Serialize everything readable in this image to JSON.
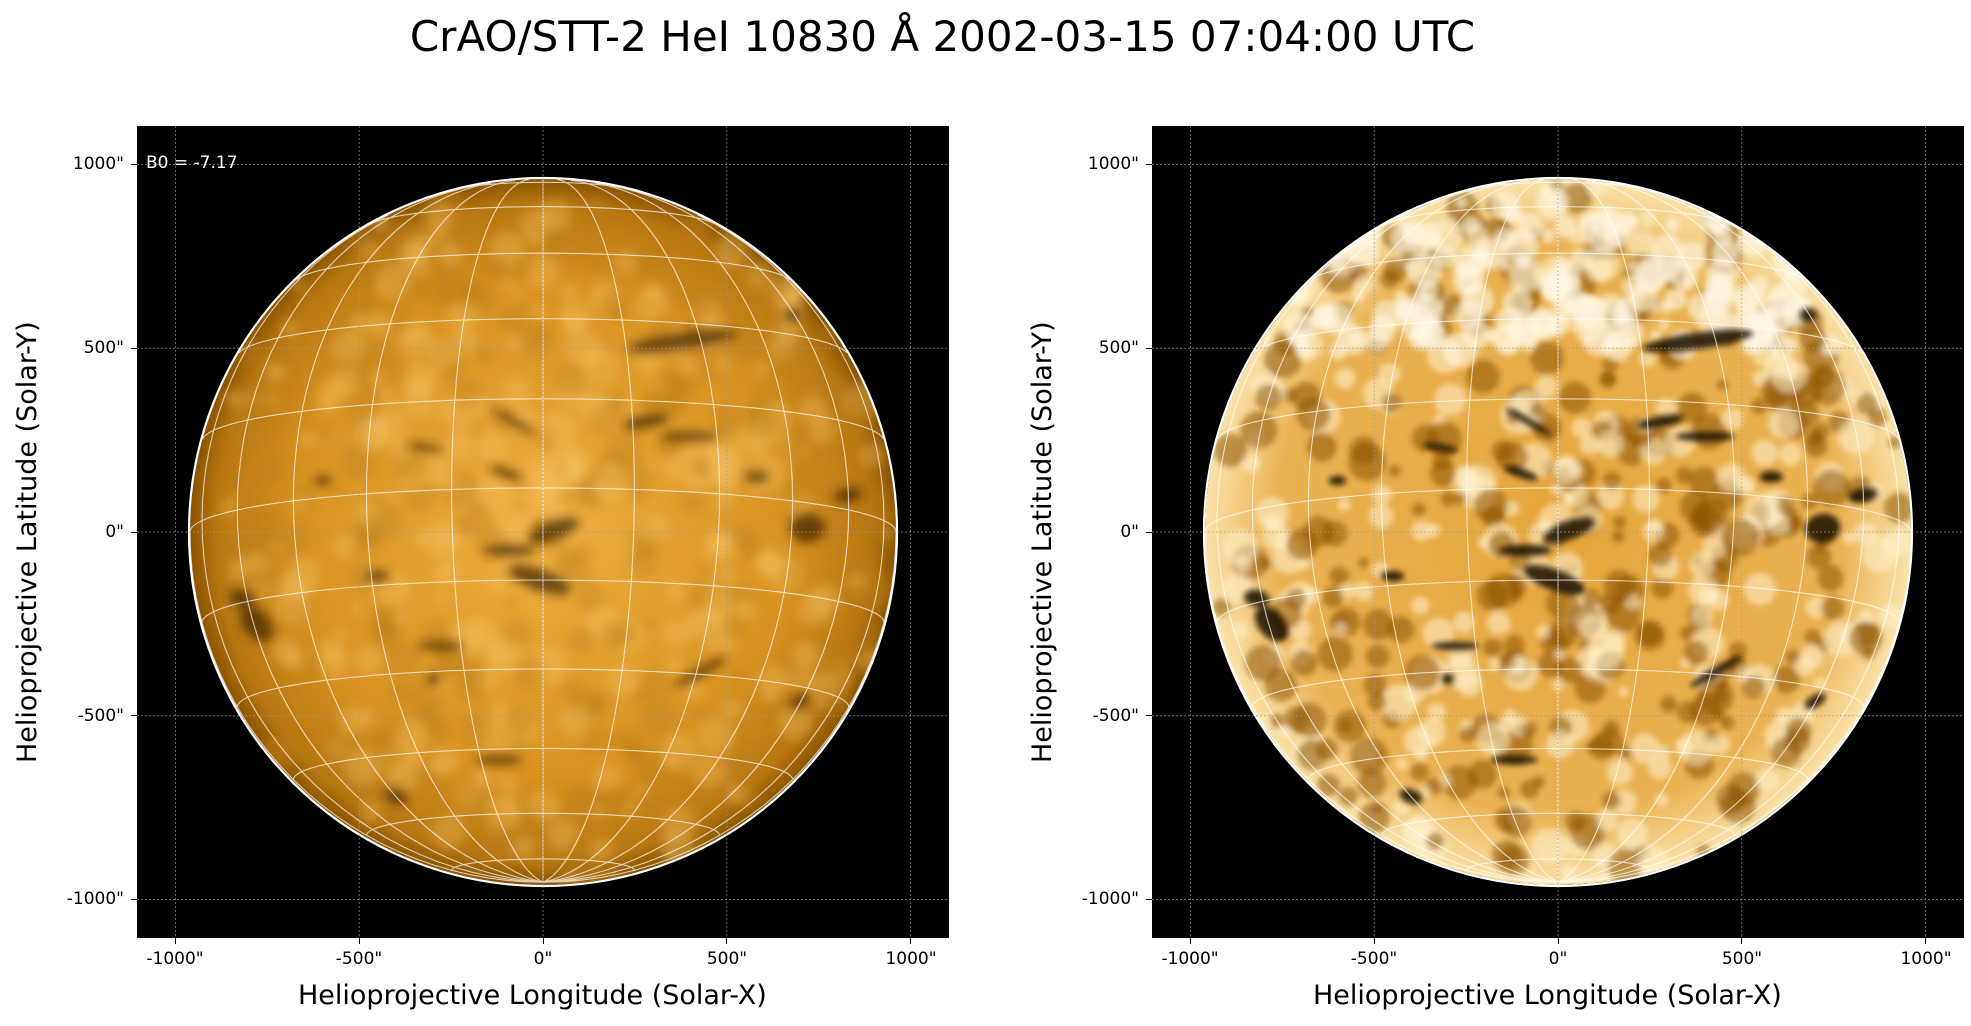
{
  "figure": {
    "title": "CrAO/STT-2 HeI 10830 Å 2002-03-15 07:04:00 UTC"
  },
  "axes": {
    "xlabel": "Helioprojective Longitude (Solar-X)",
    "ylabel": "Helioprojective Latitude (Solar-Y)",
    "xticks": [
      "-1000\"",
      "-500\"",
      "0\"",
      "500\"",
      "1000\""
    ],
    "yticks": [
      "1000\"",
      "500\"",
      "0\"",
      "-500\"",
      "-1000\""
    ]
  },
  "left_panel": {
    "annotation": "B0 = -7.17",
    "style": "linear intensity, orange (sdo aia 171 style) colormap"
  },
  "right_panel": {
    "style": "contrast-enhanced, orange colormap"
  },
  "colors": {
    "background": "#000000",
    "disk_dark": "#7a4a00",
    "disk_mid": "#c98300",
    "disk_bright": "#ffd98a",
    "grid": "#ffffff"
  }
}
